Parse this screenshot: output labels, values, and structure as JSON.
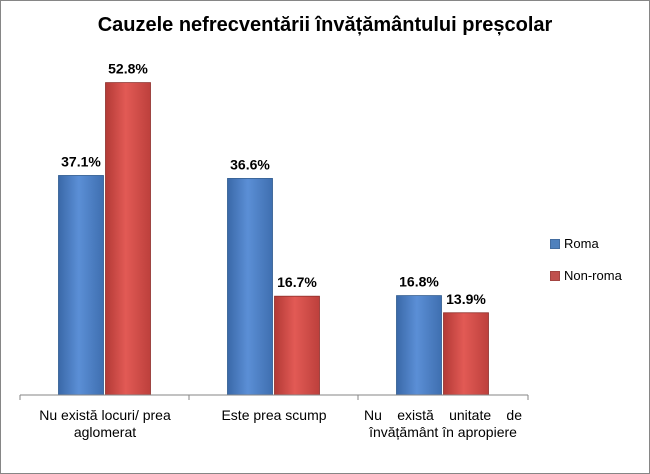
{
  "chart_data": {
    "type": "bar",
    "title": "Cauzele nefrecventării învățământului preșcolar",
    "categories": [
      "Nu există locuri/ prea aglomerat",
      "Este prea scump",
      "Nu există unitate de învățământ în apropiere"
    ],
    "series": [
      {
        "name": "Roma",
        "values": [
          37.1,
          36.6,
          16.8
        ],
        "labels": [
          "37.1%",
          "36.6%",
          "16.8%"
        ],
        "color": "#4F81BD"
      },
      {
        "name": "Non-roma",
        "values": [
          52.8,
          16.7,
          13.9
        ],
        "labels": [
          "52.8%",
          "16.7%",
          "13.9%"
        ],
        "color": "#C0504D"
      }
    ],
    "ylim": [
      0,
      60
    ],
    "grid": false,
    "legend": "right"
  }
}
